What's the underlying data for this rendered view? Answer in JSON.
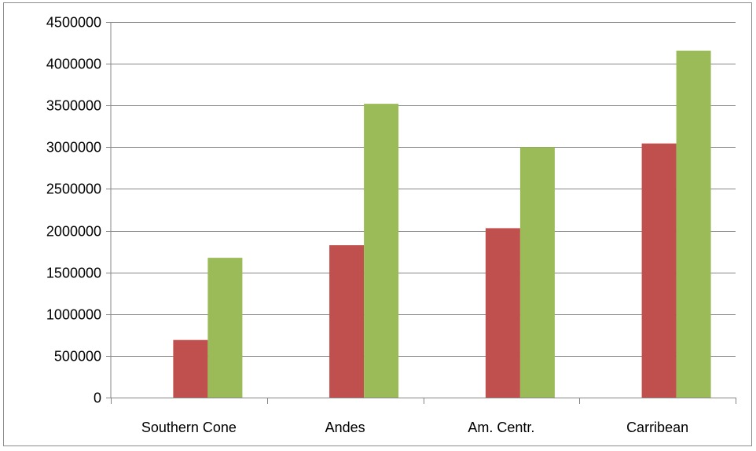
{
  "chart_data": {
    "type": "bar",
    "title": "",
    "xlabel": "",
    "ylabel": "",
    "categories": [
      "Southern Cone",
      "Andes",
      "Am. Centr.",
      "Carribean"
    ],
    "series": [
      {
        "values": [
          0,
          0,
          0,
          0
        ],
        "color": "#4f81bd"
      },
      {
        "values": [
          690000,
          1825000,
          2030000,
          3045000
        ],
        "color": "#c0504d"
      },
      {
        "values": [
          1675000,
          3520000,
          3000000,
          4155000
        ],
        "color": "#9bbb59"
      }
    ],
    "ylim": [
      0,
      4500000
    ],
    "yticks": [
      "0",
      "500000",
      "1000000",
      "1500000",
      "2000000",
      "2500000",
      "3000000",
      "3500000",
      "4000000",
      "4500000"
    ],
    "grid": true,
    "legend": "none",
    "colors": {
      "gridline": "#868686",
      "axis": "#868686"
    }
  }
}
